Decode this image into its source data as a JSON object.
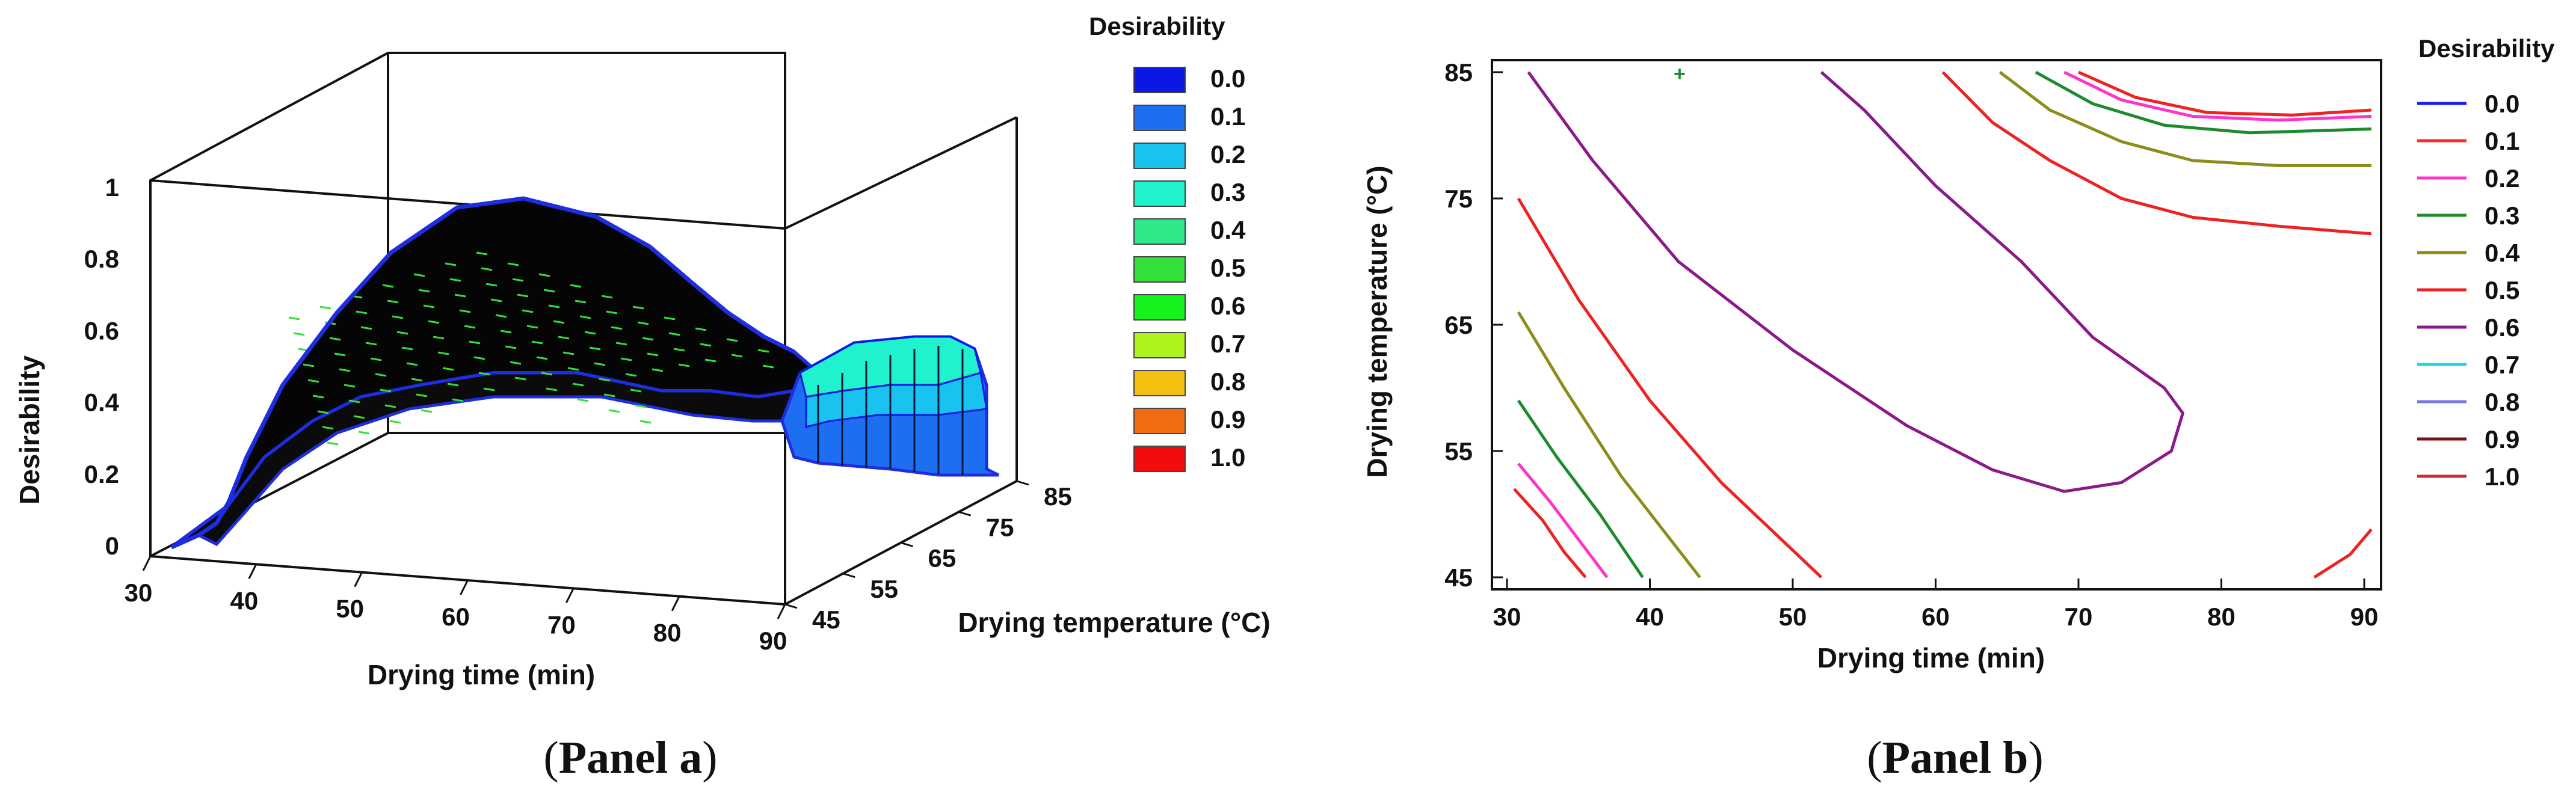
{
  "panel_a": {
    "caption_open": "(",
    "caption_main": "Panel a",
    "caption_close": ")"
  },
  "panel_b": {
    "caption_open": "(",
    "caption_main": "Panel b",
    "caption_close": ")"
  },
  "chart_data": [
    {
      "type": "surface3d",
      "xlabel": "Drying time (min)",
      "ylabel": "Drying temperature (°C)",
      "zlabel": "Desirability",
      "xlim": [
        30,
        90
      ],
      "ylim": [
        45,
        85
      ],
      "zlim": [
        0,
        1
      ],
      "x_ticks": [
        30,
        40,
        50,
        60,
        70,
        80,
        90
      ],
      "y_ticks": [
        45,
        55,
        65,
        75,
        85
      ],
      "z_ticks": [
        0,
        0.2,
        0.4,
        0.6,
        0.8,
        1
      ],
      "z_tick_labels": [
        "0",
        "0.2",
        "0.4",
        "0.6",
        "0.8",
        "1"
      ],
      "legend_title": "Desirability",
      "legend_placement": "right",
      "legend": [
        {
          "label": "0.0",
          "color": "#0a17e6"
        },
        {
          "label": "0.1",
          "color": "#1e6ef2"
        },
        {
          "label": "0.2",
          "color": "#19c3ef"
        },
        {
          "label": "0.3",
          "color": "#1ff2cc"
        },
        {
          "label": "0.4",
          "color": "#2ee88a"
        },
        {
          "label": "0.5",
          "color": "#33e03a"
        },
        {
          "label": "0.6",
          "color": "#16f21b"
        },
        {
          "label": "0.7",
          "color": "#b0f21c"
        },
        {
          "label": "0.8",
          "color": "#f2c10f"
        },
        {
          "label": "0.9",
          "color": "#f26a12"
        },
        {
          "label": "1.0",
          "color": "#f20d0d"
        }
      ],
      "surface_ridge": {
        "x": [
          30,
          35,
          38,
          40,
          45,
          50,
          55,
          60,
          65,
          70,
          75,
          80,
          85,
          90
        ],
        "z": [
          0.0,
          0.05,
          0.3,
          0.45,
          0.7,
          0.82,
          0.92,
          0.98,
          0.95,
          0.85,
          0.7,
          0.62,
          0.55,
          0.5
        ]
      }
    },
    {
      "type": "contour",
      "xlabel": "Drying time (min)",
      "ylabel": "Drying temperature (°C)",
      "xlim": [
        30,
        90
      ],
      "ylim": [
        45,
        85
      ],
      "x_ticks": [
        30,
        40,
        50,
        60,
        70,
        80,
        90
      ],
      "y_ticks": [
        45,
        55,
        65,
        75,
        85
      ],
      "legend_title": "Desirability",
      "legend_placement": "right",
      "legend": [
        {
          "label": "0.0",
          "color": "#1a1aff"
        },
        {
          "label": "0.1",
          "color": "#ff2a2a"
        },
        {
          "label": "0.2",
          "color": "#ff33cc"
        },
        {
          "label": "0.3",
          "color": "#1e8a2e"
        },
        {
          "label": "0.4",
          "color": "#8c8c1a"
        },
        {
          "label": "0.5",
          "color": "#ee2222"
        },
        {
          "label": "0.6",
          "color": "#8a1a8a"
        },
        {
          "label": "0.7",
          "color": "#1fd6e6"
        },
        {
          "label": "0.8",
          "color": "#7a7ad6"
        },
        {
          "label": "0.9",
          "color": "#7a1010"
        },
        {
          "label": "1.0",
          "color": "#d62a2a"
        }
      ],
      "contours": [
        {
          "level": "0.1",
          "color": "#ee2222",
          "points": [
            [
              30.5,
              52
            ],
            [
              32.5,
              49.5
            ],
            [
              34,
              47
            ],
            [
              35.5,
              45
            ]
          ]
        },
        {
          "level": "0.2",
          "color": "#ff33cc",
          "points": [
            [
              30.8,
              54
            ],
            [
              33,
              51
            ],
            [
              35,
              48
            ],
            [
              37,
              45
            ]
          ]
        },
        {
          "level": "0.3",
          "color": "#1e8a2e",
          "points": [
            [
              30.8,
              59
            ],
            [
              33.5,
              54.5
            ],
            [
              36.5,
              50
            ],
            [
              39.5,
              45
            ]
          ]
        },
        {
          "level": "0.4",
          "color": "#8c8c1a",
          "points": [
            [
              30.8,
              66
            ],
            [
              34,
              60
            ],
            [
              38,
              53
            ],
            [
              43.5,
              45
            ]
          ]
        },
        {
          "level": "0.5",
          "color": "#ee2222",
          "points": [
            [
              30.8,
              75
            ],
            [
              35,
              67
            ],
            [
              40,
              59
            ],
            [
              45,
              52.5
            ],
            [
              52,
              45
            ]
          ]
        },
        {
          "level": "0.6",
          "color": "#8a1a8a",
          "points": [
            [
              31.5,
              85
            ],
            [
              36,
              78
            ],
            [
              42,
              70
            ],
            [
              50,
              63
            ],
            [
              58,
              57
            ],
            [
              64,
              53.5
            ],
            [
              69,
              51.8
            ],
            [
              73,
              52.5
            ],
            [
              76.5,
              55
            ],
            [
              77.3,
              58
            ],
            [
              76,
              60
            ],
            [
              71,
              64
            ],
            [
              66,
              70
            ],
            [
              60,
              76
            ],
            [
              55,
              82
            ],
            [
              52,
              85
            ]
          ]
        },
        {
          "level": "0.5",
          "color": "#ee2222",
          "points": [
            [
              60.5,
              85
            ],
            [
              64,
              81
            ],
            [
              68,
              78
            ],
            [
              73,
              75
            ],
            [
              78,
              73.5
            ],
            [
              84,
              72.8
            ],
            [
              90.5,
              72.2
            ]
          ]
        },
        {
          "level": "0.4",
          "color": "#8c8c1a",
          "points": [
            [
              64.5,
              85
            ],
            [
              68,
              82
            ],
            [
              73,
              79.5
            ],
            [
              78,
              78
            ],
            [
              84,
              77.6
            ],
            [
              90.5,
              77.6
            ]
          ]
        },
        {
          "level": "0.3",
          "color": "#1e8a2e",
          "points": [
            [
              67,
              85
            ],
            [
              71,
              82.5
            ],
            [
              76,
              80.8
            ],
            [
              82,
              80.2
            ],
            [
              90.5,
              80.5
            ]
          ]
        },
        {
          "level": "0.2",
          "color": "#ff33cc",
          "points": [
            [
              69,
              85
            ],
            [
              73,
              82.8
            ],
            [
              78,
              81.5
            ],
            [
              84,
              81.2
            ],
            [
              90.5,
              81.5
            ]
          ]
        },
        {
          "level": "0.1",
          "color": "#ee2222",
          "points": [
            [
              70,
              85
            ],
            [
              74,
              83
            ],
            [
              79,
              81.8
            ],
            [
              85,
              81.6
            ],
            [
              90.5,
              82
            ]
          ]
        },
        {
          "level": "0.1",
          "color": "#ee2222",
          "points": [
            [
              86.5,
              45
            ],
            [
              89,
              46.8
            ],
            [
              90.5,
              48.8
            ]
          ]
        }
      ],
      "marker_point": [
        42,
        85
      ]
    }
  ]
}
